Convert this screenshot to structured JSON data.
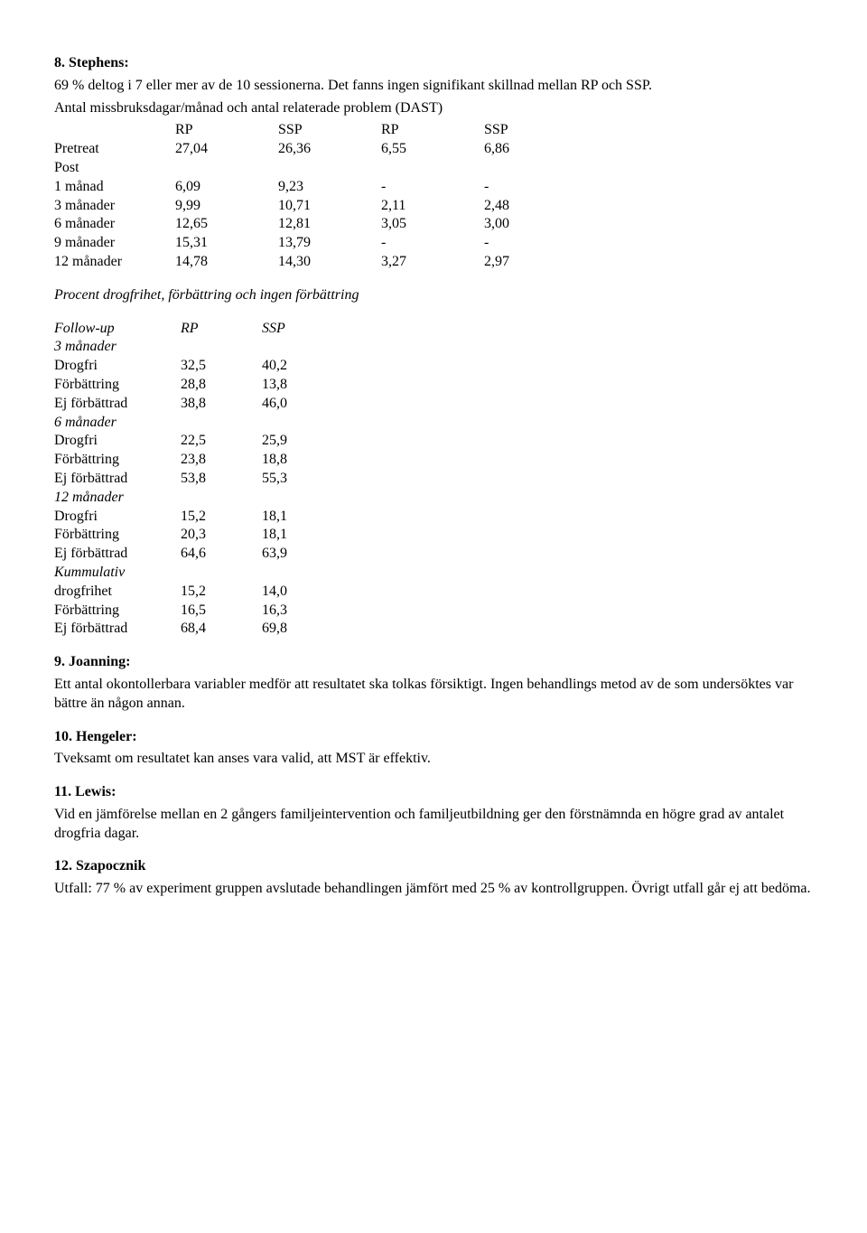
{
  "s8": {
    "title": "8. Stephens:",
    "para1": "69 % deltog i 7 eller mer av de 10 sessionerna. Det fanns ingen signifikant skillnad mellan RP och SSP.",
    "para2": "Antal missbruksdagar/månad och antal relaterade problem (DAST)",
    "table1": {
      "headers": [
        "",
        "RP",
        "SSP",
        "RP",
        "SSP"
      ],
      "rows": [
        [
          "Pretreat",
          "27,04",
          "26,36",
          "6,55",
          "6,86"
        ],
        [
          "Post",
          "",
          "",
          "",
          ""
        ],
        [
          "1 månad",
          "6,09",
          "9,23",
          "-",
          "-"
        ],
        [
          "3 månader",
          "9,99",
          "10,71",
          "2,11",
          "2,48"
        ],
        [
          "6 månader",
          "12,65",
          "12,81",
          "3,05",
          "3,00"
        ],
        [
          "9 månader",
          "15,31",
          "13,79",
          "-",
          "-"
        ],
        [
          "12 månader",
          "14,78",
          "14,30",
          "3,27",
          "2,97"
        ]
      ]
    },
    "subhead1": "Procent drogfrihet, förbättring och ingen förbättring",
    "table2": {
      "header": [
        "Follow-up",
        "RP",
        "SSP"
      ],
      "groups": [
        {
          "title": "3 månader",
          "rows": [
            [
              "Drogfri",
              "32,5",
              "40,2"
            ],
            [
              "Förbättring",
              "28,8",
              "13,8"
            ],
            [
              "Ej förbättrad",
              "38,8",
              "46,0"
            ]
          ]
        },
        {
          "title": "6 månader",
          "rows": [
            [
              "Drogfri",
              "22,5",
              "25,9"
            ],
            [
              "Förbättring",
              "23,8",
              "18,8"
            ],
            [
              "Ej förbättrad",
              "53,8",
              "55,3"
            ]
          ]
        },
        {
          "title": "12 månader",
          "rows": [
            [
              "Drogfri",
              "15,2",
              "18,1"
            ],
            [
              "Förbättring",
              "20,3",
              "18,1"
            ],
            [
              "Ej förbättrad",
              "64,6",
              "63,9"
            ]
          ]
        },
        {
          "title": "Kummulativ",
          "rows": [
            [
              "drogfrihet",
              "15,2",
              "14,0"
            ],
            [
              "Förbättring",
              "16,5",
              "16,3"
            ],
            [
              "Ej förbättrad",
              "68,4",
              "69,8"
            ]
          ]
        }
      ]
    }
  },
  "s9": {
    "title": "9. Joanning:",
    "para": "Ett antal okontollerbara variabler medför att resultatet ska tolkas försiktigt. Ingen behandlings metod av de som undersöktes var bättre än någon annan."
  },
  "s10": {
    "title": "10. Hengeler:",
    "para": "Tveksamt om resultatet kan anses vara valid, att MST är effektiv."
  },
  "s11": {
    "title": "11. Lewis:",
    "para": "Vid en jämförelse mellan en 2 gångers familjeintervention och familjeutbildning ger den förstnämnda en högre grad av antalet drogfria dagar."
  },
  "s12": {
    "title": "12. Szapocznik",
    "para": "Utfall: 77 % av experiment gruppen avslutade behandlingen jämfört med 25 % av kontrollgruppen. Övrigt utfall går ej att bedöma."
  }
}
